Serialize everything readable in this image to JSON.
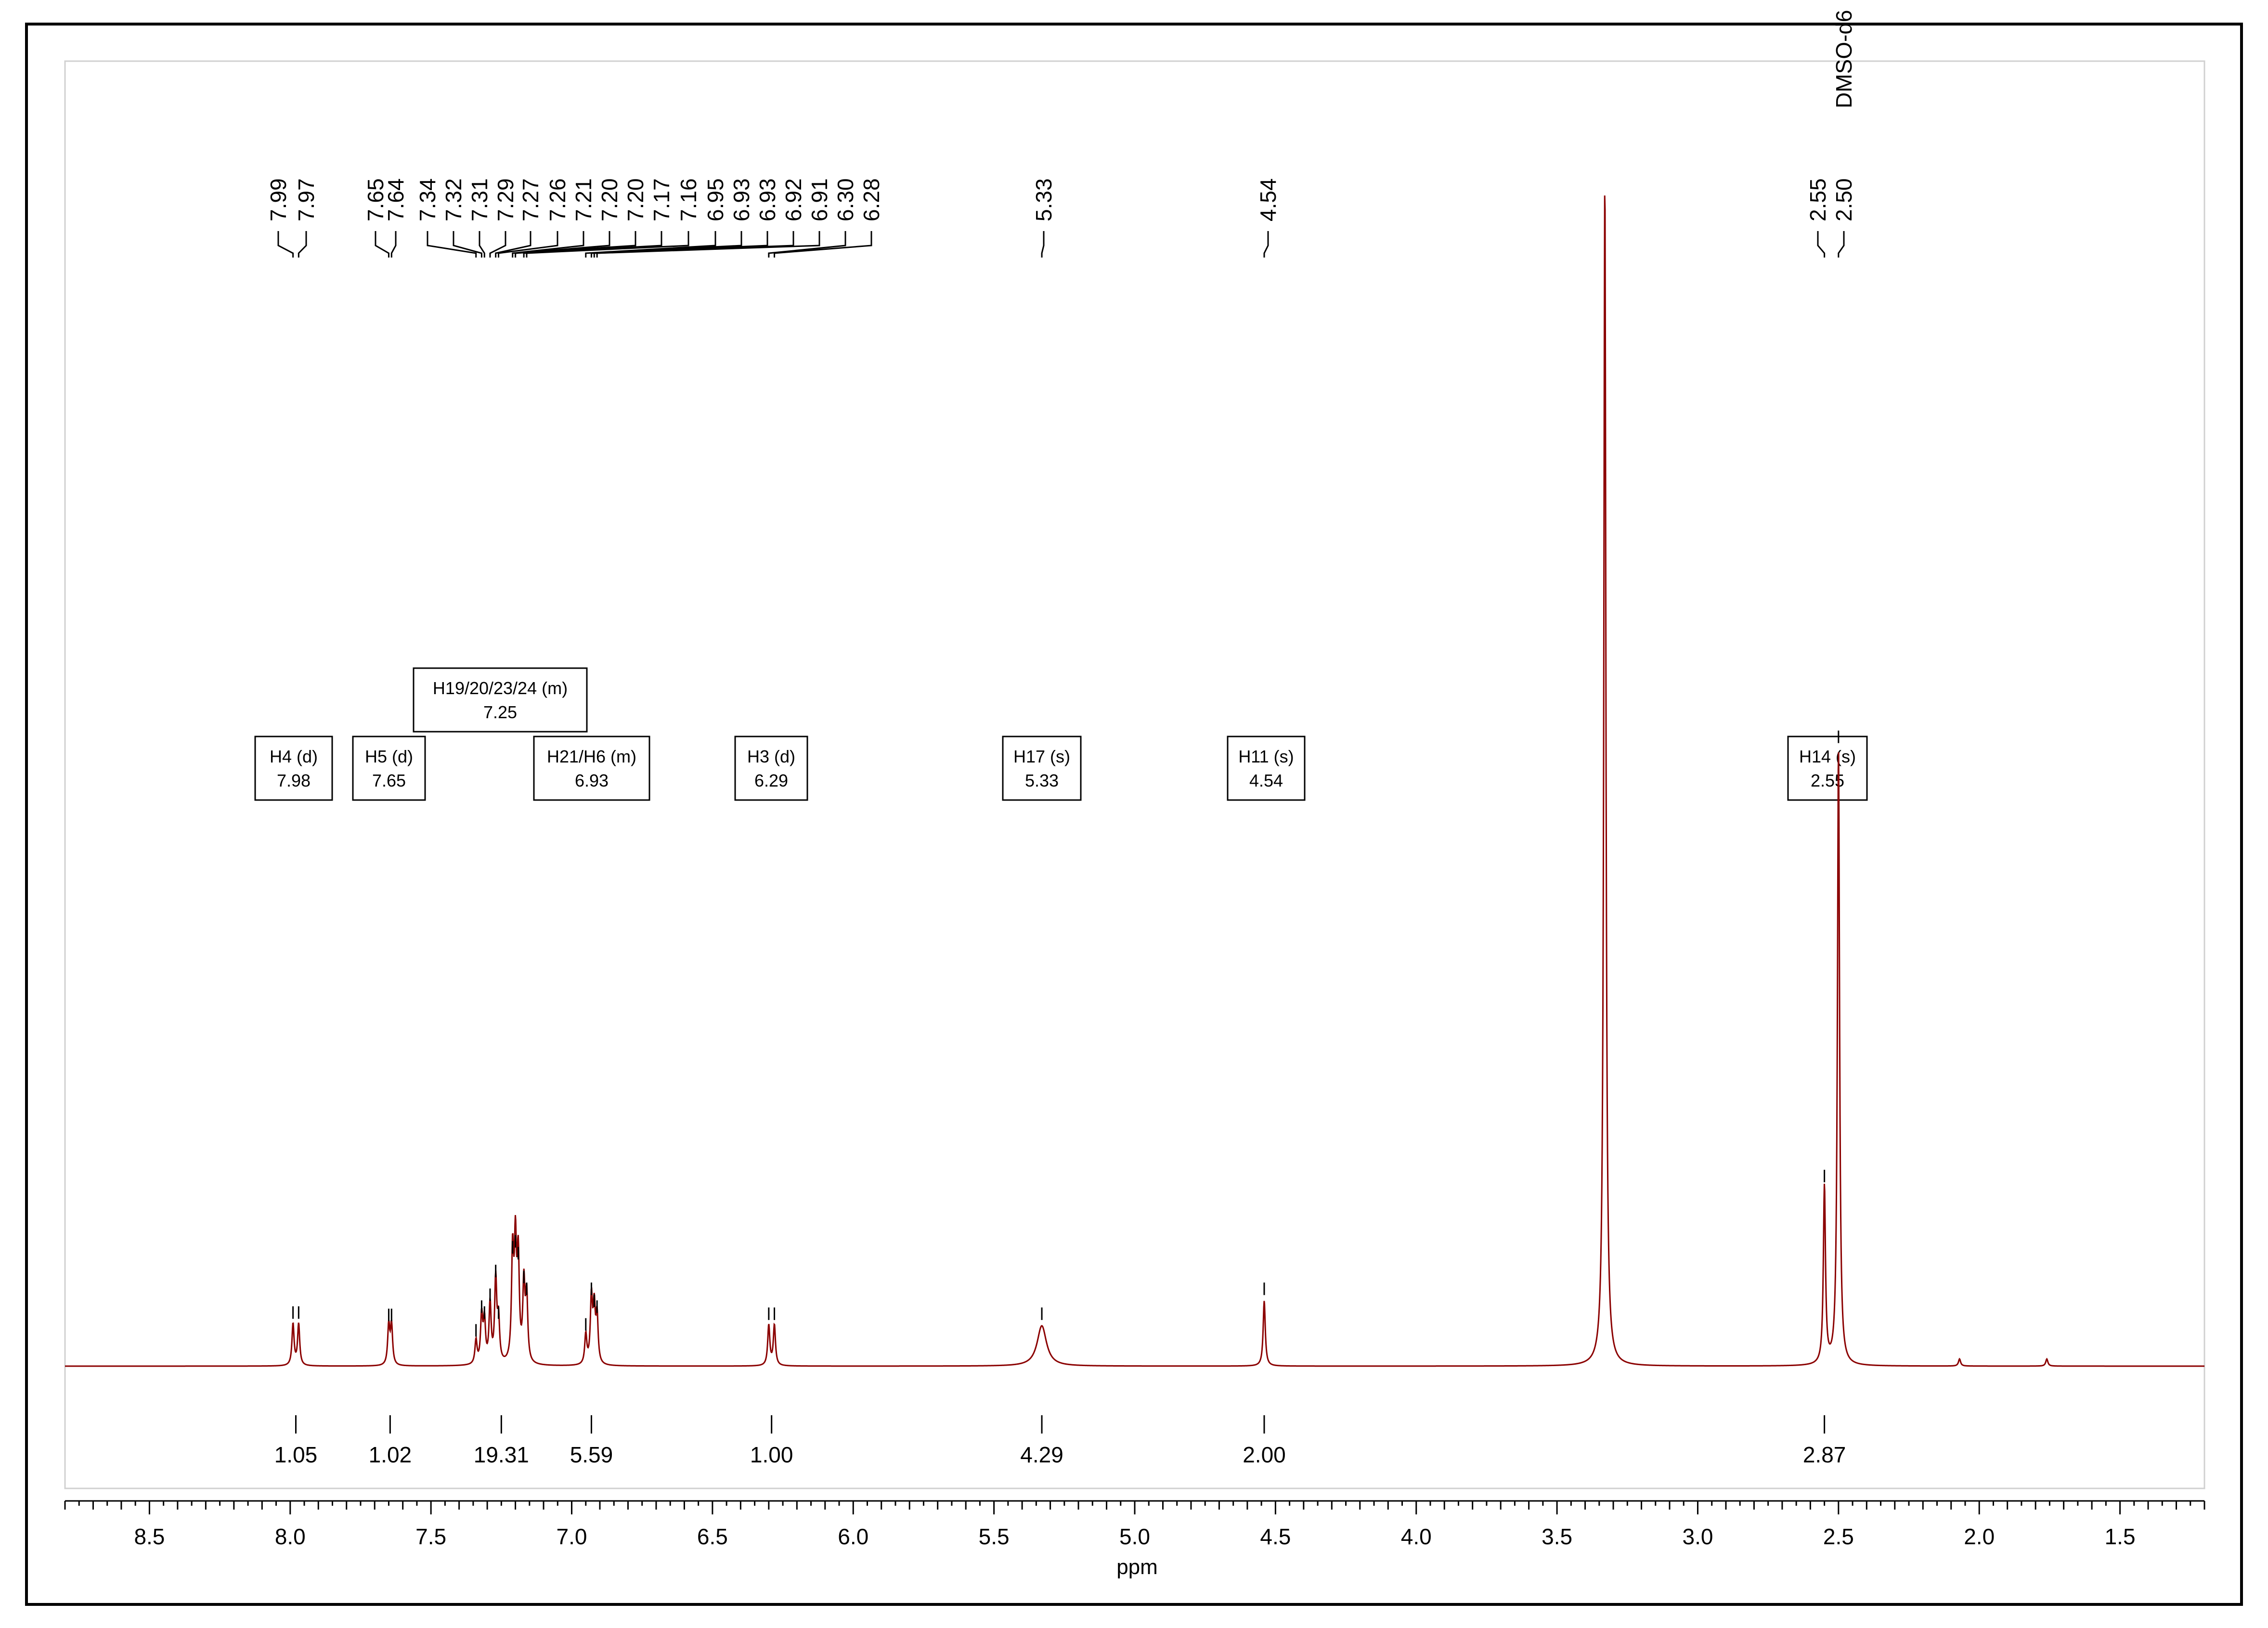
{
  "chart_data": {
    "type": "line",
    "xlabel": "ppm",
    "xlim": [
      8.8,
      1.2
    ],
    "x_ticks": [
      "8.5",
      "8.0",
      "7.5",
      "7.0",
      "6.5",
      "6.0",
      "5.5",
      "5.0",
      "4.5",
      "4.0",
      "3.5",
      "3.0",
      "2.5",
      "2.0",
      "1.5"
    ],
    "colors": {
      "spectrum": "#8b0000",
      "frame": "#000000"
    },
    "peak_labels": [
      "7.99",
      "7.97",
      "7.65",
      "7.64",
      "7.34",
      "7.32",
      "7.31",
      "7.29",
      "7.27",
      "7.26",
      "7.21",
      "7.20",
      "7.20",
      "7.17",
      "7.16",
      "6.95",
      "6.93",
      "6.93",
      "6.92",
      "6.91",
      "6.30",
      "6.28",
      "5.33",
      "4.54",
      "2.55",
      "2.50"
    ],
    "solvent_label": "DMSO-d6",
    "multiplets": [
      {
        "line1": "H4 (d)",
        "line2": "7.98"
      },
      {
        "line1": "H5 (d)",
        "line2": "7.65"
      },
      {
        "line1": "H19/20/23/24 (m)",
        "line2": "7.25"
      },
      {
        "line1": "H21/H6 (m)",
        "line2": "6.93"
      },
      {
        "line1": "H3 (d)",
        "line2": "6.29"
      },
      {
        "line1": "H17 (s)",
        "line2": "5.33"
      },
      {
        "line1": "H11 (s)",
        "line2": "4.54"
      },
      {
        "line1": "H14 (s)",
        "line2": "2.55"
      }
    ],
    "integrals": [
      {
        "ppm": 7.98,
        "value": "1.05"
      },
      {
        "ppm": 7.645,
        "value": "1.02"
      },
      {
        "ppm": 7.25,
        "value": "19.31"
      },
      {
        "ppm": 6.93,
        "value": "5.59"
      },
      {
        "ppm": 6.29,
        "value": "1.00"
      },
      {
        "ppm": 5.33,
        "value": "4.29"
      },
      {
        "ppm": 4.54,
        "value": "2.00"
      },
      {
        "ppm": 2.55,
        "value": "2.87"
      }
    ],
    "peaks": [
      {
        "ppm": 7.99,
        "h": 0.035
      },
      {
        "ppm": 7.97,
        "h": 0.035
      },
      {
        "ppm": 7.65,
        "h": 0.033
      },
      {
        "ppm": 7.64,
        "h": 0.033
      },
      {
        "ppm": 7.34,
        "h": 0.02
      },
      {
        "ppm": 7.32,
        "h": 0.04
      },
      {
        "ppm": 7.31,
        "h": 0.035
      },
      {
        "ppm": 7.29,
        "h": 0.05
      },
      {
        "ppm": 7.27,
        "h": 0.07
      },
      {
        "ppm": 7.26,
        "h": 0.035
      },
      {
        "ppm": 7.21,
        "h": 0.09
      },
      {
        "ppm": 7.2,
        "h": 0.095
      },
      {
        "ppm": 7.19,
        "h": 0.085
      },
      {
        "ppm": 7.17,
        "h": 0.065
      },
      {
        "ppm": 7.16,
        "h": 0.055
      },
      {
        "ppm": 6.95,
        "h": 0.025
      },
      {
        "ppm": 6.93,
        "h": 0.055
      },
      {
        "ppm": 6.92,
        "h": 0.045
      },
      {
        "ppm": 6.91,
        "h": 0.04
      },
      {
        "ppm": 6.3,
        "h": 0.034
      },
      {
        "ppm": 6.28,
        "h": 0.034
      },
      {
        "ppm": 5.33,
        "h": 0.034,
        "w": 0.02
      },
      {
        "ppm": 4.54,
        "h": 0.055
      },
      {
        "ppm": 3.33,
        "h": 1.0
      },
      {
        "ppm": 2.55,
        "h": 0.15
      },
      {
        "ppm": 2.5,
        "h": 0.52
      },
      {
        "ppm": 2.07,
        "h": 0.006
      },
      {
        "ppm": 1.76,
        "h": 0.006
      }
    ]
  }
}
